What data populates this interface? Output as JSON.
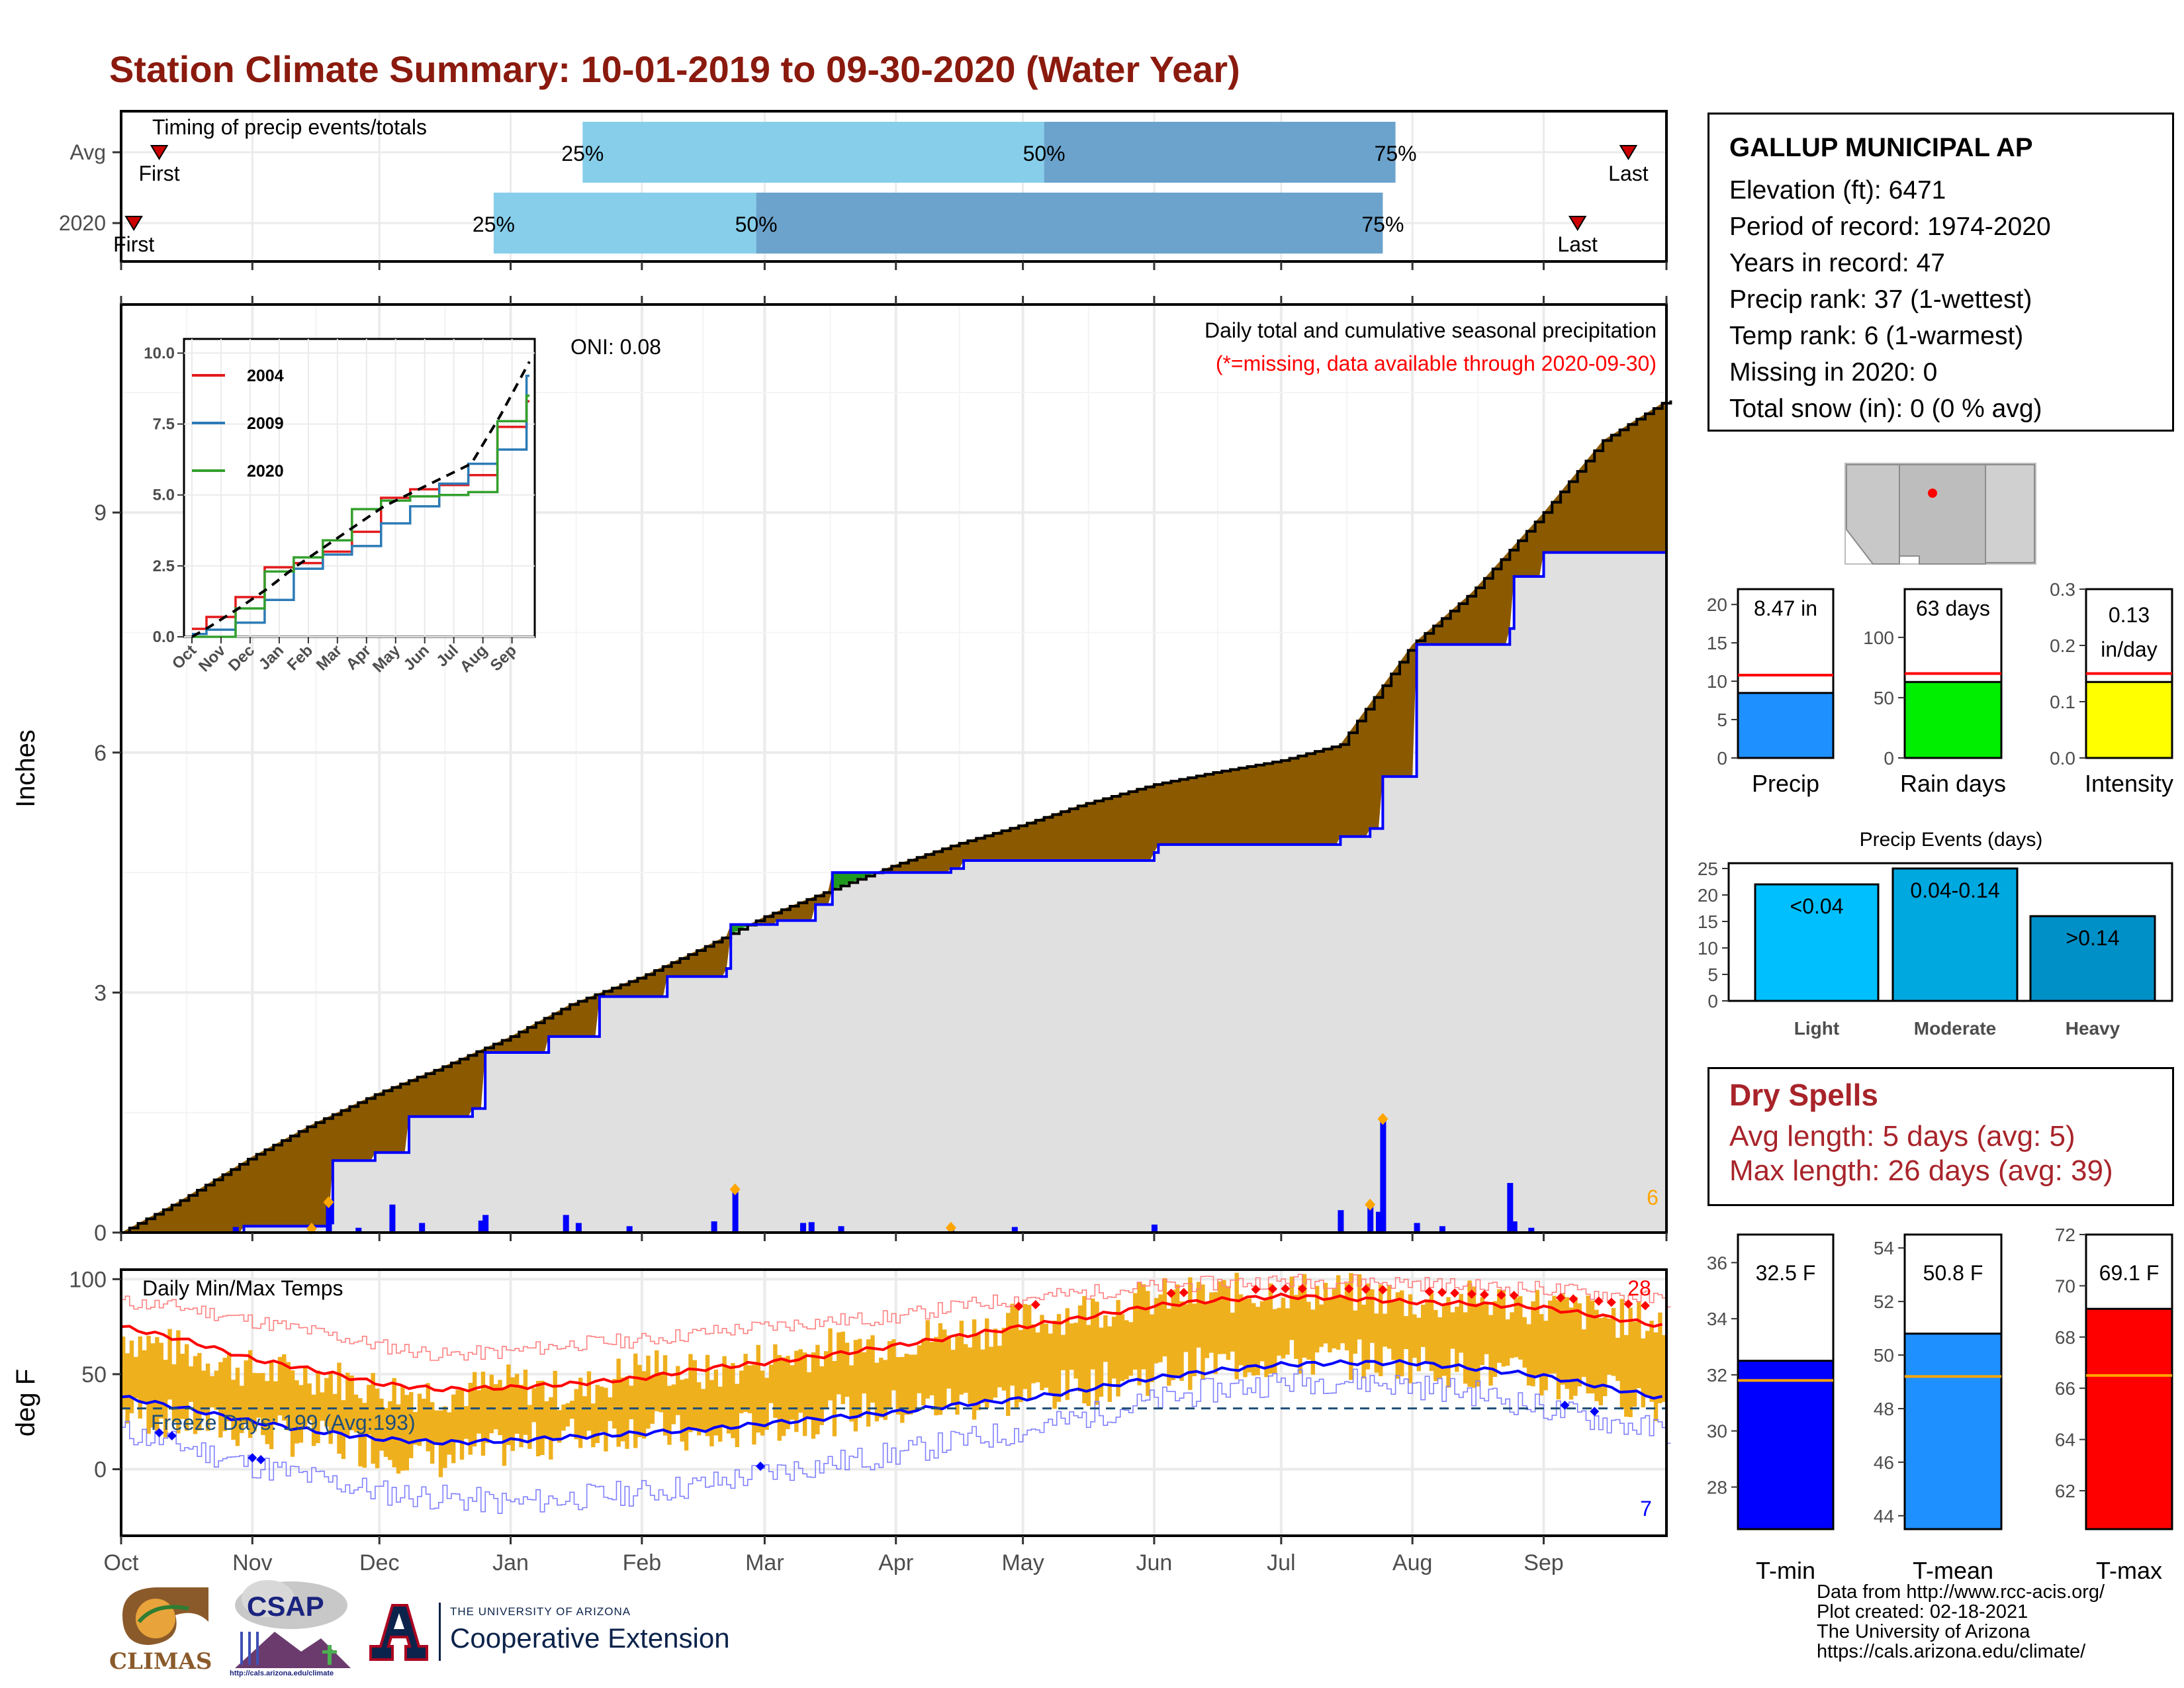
{
  "title": "Station Climate Summary: 10-01-2019 to 09-30-2020 (Water Year)",
  "colors": {
    "title": "#8b1a0e",
    "cumulative_avg_fill": "#8b5a00",
    "cumulative_2020_line": "#0000ff",
    "cumulative_above_fill": "#1f9a1f",
    "light_gray_fill": "#e0e0e0",
    "daily_precip_bars": "#0000ff",
    "precip_extreme_marker": "#ffa500",
    "daily_temp_range": "#efb01e",
    "tmax_avg_line": "#ff0000",
    "tmin_avg_line": "#0000ff",
    "record_high_marker": "#ff0000",
    "record_low_marker": "#0000ff"
  },
  "timing_panel": {
    "label": "Timing of precip events/totals",
    "row_labels": [
      "Avg",
      "2020"
    ],
    "rows": [
      {
        "name": "Avg",
        "first": "First",
        "last": "Last",
        "first_date": "2019-10-10",
        "q25": "2020-01-18",
        "q50": "2020-05-06",
        "q75": "2020-07-28",
        "last_date": "2020-09-21",
        "labels": [
          "25%",
          "50%",
          "75%"
        ]
      },
      {
        "name": "2020",
        "first": "First",
        "last": "Last",
        "first_date": "2019-10-04",
        "q25": "2019-12-28",
        "q50": "2020-02-28",
        "q75": "2020-07-25",
        "last_date": "2020-09-09",
        "labels": [
          "25%",
          "50%",
          "75%"
        ]
      }
    ],
    "colors": {
      "q25_50": "#87ceeb",
      "q50_75": "#6ba3cc",
      "marker": "#cc0000"
    }
  },
  "chart_data": [
    {
      "type": "area",
      "name": "cumulative precipitation",
      "annotation": "Daily total and cumulative seasonal precipitation",
      "missing_note": "(*=missing, data available through 2020-09-30)",
      "oni_label": "ONI: 0.08",
      "ylabel": "Inches",
      "ylim": [
        0,
        11.6
      ],
      "yticks": [
        0,
        3,
        6,
        9
      ],
      "xlim": [
        "2019-10-01",
        "2020-09-30"
      ],
      "corner_count": "6",
      "avg_cumulative": {
        "x": [
          "2019-10-01",
          "2019-10-15",
          "2019-11-01",
          "2019-11-15",
          "2019-12-01",
          "2019-12-15",
          "2020-01-01",
          "2020-01-15",
          "2020-02-01",
          "2020-02-15",
          "2020-03-01",
          "2020-03-15",
          "2020-04-01",
          "2020-04-15",
          "2020-05-01",
          "2020-05-15",
          "2020-06-01",
          "2020-06-15",
          "2020-07-01",
          "2020-07-15",
          "2020-08-01",
          "2020-08-15",
          "2020-09-01",
          "2020-09-15",
          "2020-09-30"
        ],
        "values": [
          0.0,
          0.4,
          0.95,
          1.35,
          1.75,
          2.05,
          2.45,
          2.85,
          3.2,
          3.55,
          3.95,
          4.25,
          4.6,
          4.85,
          5.1,
          5.35,
          5.6,
          5.75,
          5.9,
          6.1,
          7.35,
          8.0,
          9.0,
          9.9,
          10.4
        ]
      },
      "cum_2020": {
        "x": [
          "2019-10-01",
          "2019-10-28",
          "2019-10-30",
          "2019-11-19",
          "2019-11-20",
          "2019-11-30",
          "2019-12-08",
          "2019-12-23",
          "2019-12-26",
          "2020-01-10",
          "2020-01-22",
          "2020-02-07",
          "2020-02-21",
          "2020-02-22",
          "2020-03-04",
          "2020-03-13",
          "2020-03-17",
          "2020-04-14",
          "2020-04-17",
          "2020-06-01",
          "2020-06-02",
          "2020-07-15",
          "2020-07-22",
          "2020-07-24",
          "2020-07-25",
          "2020-08-02",
          "2020-08-24",
          "2020-08-25",
          "2020-09-01",
          "2020-09-30"
        ],
        "values": [
          0.0,
          0.0,
          0.08,
          0.12,
          0.9,
          1.0,
          1.45,
          1.55,
          2.25,
          2.45,
          2.95,
          3.2,
          3.3,
          3.85,
          3.9,
          4.1,
          4.5,
          4.55,
          4.65,
          4.75,
          4.85,
          4.95,
          5.05,
          5.05,
          5.7,
          7.35,
          7.55,
          8.2,
          8.5,
          8.5
        ]
      },
      "daily_events": {
        "dates": [
          "2019-10-28",
          "2019-11-15",
          "2019-11-19",
          "2019-11-26",
          "2019-12-04",
          "2019-12-11",
          "2019-12-25",
          "2019-12-26",
          "2020-01-14",
          "2020-01-17",
          "2020-01-29",
          "2020-02-18",
          "2020-02-23",
          "2020-03-10",
          "2020-03-12",
          "2020-03-19",
          "2020-04-14",
          "2020-04-29",
          "2020-06-01",
          "2020-07-15",
          "2020-07-22",
          "2020-07-24",
          "2020-07-25",
          "2020-08-02",
          "2020-08-08",
          "2020-08-24",
          "2020-08-25",
          "2020-08-29"
        ],
        "values": [
          0.07,
          0.05,
          0.38,
          0.06,
          0.35,
          0.12,
          0.15,
          0.22,
          0.22,
          0.12,
          0.08,
          0.14,
          0.54,
          0.12,
          0.13,
          0.08,
          0.06,
          0.07,
          0.1,
          0.28,
          0.35,
          0.26,
          1.42,
          0.12,
          0.08,
          0.62,
          0.14,
          0.06
        ],
        "marked": [
          false,
          true,
          true,
          false,
          false,
          false,
          false,
          false,
          false,
          false,
          false,
          false,
          true,
          false,
          false,
          false,
          true,
          false,
          false,
          false,
          true,
          false,
          true,
          false,
          false,
          false,
          false,
          false
        ]
      }
    },
    {
      "type": "line",
      "name": "inset cumulative comparison",
      "ylim": [
        0,
        10.5
      ],
      "yticks": [
        "0.0",
        "2.5",
        "5.0",
        "7.5",
        "10.0"
      ],
      "categories": [
        "Oct",
        "Nov",
        "Dec",
        "Jan",
        "Feb",
        "Mar",
        "Apr",
        "May",
        "Jun",
        "Jul",
        "Aug",
        "Sep"
      ],
      "series": [
        {
          "name": "2004",
          "color": "#e31a1c",
          "values": [
            0.7,
            1.4,
            2.45,
            2.6,
            3.0,
            3.7,
            4.9,
            5.2,
            5.35,
            5.7,
            7.4,
            8.3
          ]
        },
        {
          "name": "2009",
          "color": "#2c7bb6",
          "values": [
            0.25,
            0.5,
            1.3,
            2.4,
            2.9,
            3.2,
            4.0,
            4.6,
            5.4,
            6.1,
            6.6,
            9.2
          ]
        },
        {
          "name": "2020",
          "color": "#33a02c",
          "values": [
            0.0,
            1.0,
            2.3,
            2.8,
            3.4,
            4.5,
            4.8,
            4.95,
            5.0,
            5.1,
            7.6,
            8.5
          ]
        },
        {
          "name": "avg",
          "color": "#000000",
          "values": [
            0.35,
            1.0,
            1.7,
            2.5,
            3.2,
            3.9,
            4.6,
            5.1,
            5.6,
            6.1,
            7.8,
            9.7
          ]
        }
      ]
    },
    {
      "type": "line",
      "name": "daily min max temps",
      "label": "Daily Min/Max Temps",
      "ylabel": "deg F",
      "ylim": [
        -35,
        105
      ],
      "yticks": [
        0,
        50,
        100
      ],
      "freeze_label": "Freeze Days: 199 (Avg:193)",
      "freeze_level": 32,
      "record_high_count": "28",
      "record_low_count": "7",
      "xticks": [
        "Oct",
        "Nov",
        "Dec",
        "Jan",
        "Feb",
        "Mar",
        "Apr",
        "May",
        "Jun",
        "Jul",
        "Aug",
        "Sep"
      ],
      "month_days": [
        0,
        31,
        61,
        92,
        123,
        152,
        183,
        213,
        244,
        274,
        305,
        336
      ],
      "x": [
        0,
        15,
        31,
        46,
        61,
        76,
        92,
        107,
        123,
        138,
        152,
        167,
        183,
        198,
        213,
        228,
        244,
        259,
        274,
        289,
        305,
        320,
        336,
        351,
        365
      ],
      "avg_max": [
        75,
        68,
        58,
        52,
        45,
        42,
        43,
        45,
        48,
        53,
        56,
        60,
        65,
        70,
        75,
        80,
        86,
        89,
        91,
        90,
        88,
        87,
        85,
        80,
        75
      ],
      "avg_min": [
        38,
        32,
        25,
        20,
        16,
        14,
        15,
        17,
        19,
        21,
        24,
        27,
        30,
        34,
        37,
        42,
        48,
        52,
        55,
        56,
        56,
        53,
        49,
        43,
        37
      ],
      "record_max": [
        88,
        85,
        78,
        72,
        65,
        60,
        62,
        66,
        68,
        72,
        75,
        78,
        80,
        86,
        90,
        93,
        96,
        98,
        99,
        99,
        98,
        96,
        95,
        92,
        89
      ],
      "record_min": [
        20,
        12,
        2,
        -5,
        -12,
        -15,
        -18,
        -15,
        -12,
        -8,
        -2,
        3,
        8,
        15,
        20,
        28,
        36,
        42,
        46,
        47,
        44,
        40,
        32,
        25,
        20
      ],
      "daily_max": [
        70,
        62,
        52,
        50,
        42,
        40,
        45,
        40,
        55,
        50,
        58,
        64,
        68,
        72,
        78,
        84,
        90,
        92,
        94,
        93,
        88,
        89,
        86,
        80,
        76
      ],
      "daily_min": [
        30,
        25,
        20,
        15,
        10,
        5,
        12,
        18,
        22,
        15,
        24,
        28,
        32,
        35,
        38,
        44,
        50,
        55,
        58,
        58,
        56,
        52,
        46,
        40,
        34
      ]
    },
    {
      "type": "bar",
      "name": "Precip",
      "value_label": "8.47 in",
      "categories": [
        "Precip"
      ],
      "values": [
        8.47
      ],
      "avg_line": 10.8,
      "ylim": [
        0,
        22
      ],
      "yticks": [
        0,
        5,
        10,
        15,
        20
      ],
      "color": "#1e90ff"
    },
    {
      "type": "bar",
      "name": "Rain days",
      "value_label": "63 days",
      "categories": [
        "Rain days"
      ],
      "values": [
        63
      ],
      "avg_line": 70,
      "ylim": [
        0,
        140
      ],
      "yticks": [
        0,
        50,
        100
      ],
      "color": "#00ee00"
    },
    {
      "type": "bar",
      "name": "Intensity",
      "value_label": "0.13",
      "value_label2": "in/day",
      "categories": [
        "Intensity"
      ],
      "values": [
        0.135
      ],
      "avg_line": 0.15,
      "ylim": [
        0,
        0.3
      ],
      "yticks": [
        "0.0",
        "0.1",
        "0.2",
        "0.3"
      ],
      "color": "#ffff00"
    },
    {
      "type": "bar",
      "name": "Precip Events (days)",
      "title": "Precip Events (days)",
      "categories": [
        "Light",
        "Moderate",
        "Heavy"
      ],
      "bar_labels": [
        "<0.04",
        "0.04-0.14",
        ">0.14"
      ],
      "values": [
        22,
        25,
        16
      ],
      "ylim": [
        0,
        26
      ],
      "yticks": [
        0,
        5,
        10,
        15,
        20,
        25
      ],
      "colors": [
        "#00bfff",
        "#00a8e0",
        "#0090c8"
      ]
    },
    {
      "type": "bar",
      "name": "T-min",
      "value_label": "32.5 F",
      "categories": [
        "T-min"
      ],
      "values": [
        32.5
      ],
      "avg_line": 31.8,
      "ylim": [
        26.5,
        37
      ],
      "yticks": [
        28,
        30,
        32,
        34,
        36
      ],
      "color": "#0000ff"
    },
    {
      "type": "bar",
      "name": "T-mean",
      "value_label": "50.8 F",
      "categories": [
        "T-mean"
      ],
      "values": [
        50.8
      ],
      "avg_line": 49.2,
      "ylim": [
        43.5,
        54.5
      ],
      "yticks": [
        44,
        46,
        48,
        50,
        52,
        54
      ],
      "color": "#1e90ff"
    },
    {
      "type": "bar",
      "name": "T-max",
      "value_label": "69.1 F",
      "categories": [
        "T-max"
      ],
      "values": [
        69.1
      ],
      "avg_line": 66.5,
      "ylim": [
        60.5,
        72
      ],
      "yticks": [
        62,
        64,
        66,
        68,
        70,
        72
      ],
      "color": "#ff0000"
    }
  ],
  "station": {
    "name": "GALLUP MUNICIPAL AP",
    "lines": [
      "Elevation (ft): 6471",
      "Period of record: 1974-2020",
      "Years in record: 47",
      "Precip rank: 37 (1-wettest)",
      "Temp rank: 6 (1-warmest)",
      "Missing in 2020: 0",
      "Total snow (in): 0 (0 % avg)"
    ]
  },
  "dry_spells": {
    "title": "Dry Spells",
    "avg_length": "Avg length: 5 days (avg: 5)",
    "max_length": "Max length: 26 days (avg: 39)"
  },
  "credits": [
    "Data from http://www.rcc-acis.org/",
    "Plot created: 02-18-2021",
    "The University of Arizona",
    "https://cals.arizona.edu/climate/"
  ],
  "logos": {
    "climas": "CLIMAS",
    "csap": "CSAP",
    "csap_url": "http://cals.arizona.edu/climate",
    "ua_small": "THE UNIVERSITY OF ARIZONA",
    "ua_big": "Cooperative Extension"
  }
}
